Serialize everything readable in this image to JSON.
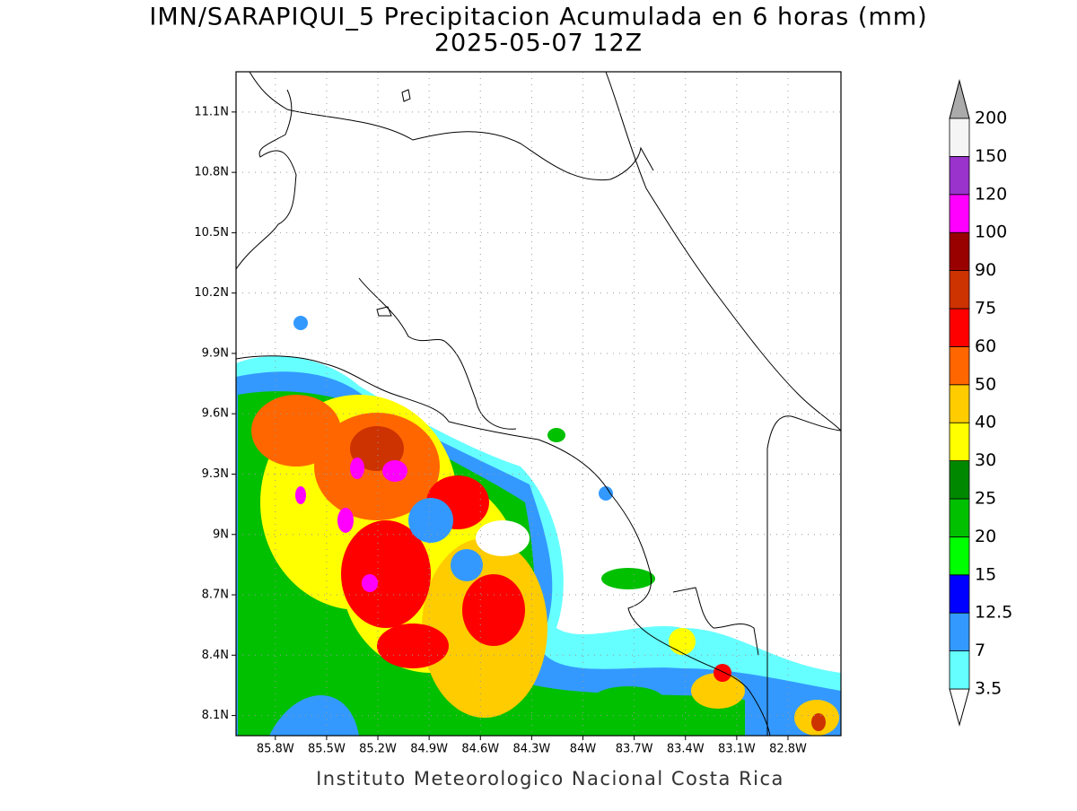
{
  "header": {
    "title": "IMN/SARAPIQUI_5 Precipitacion Acumulada en 6 horas (mm)",
    "subtitle": "2025-05-07 12Z"
  },
  "map": {
    "xlim": [
      -86.03,
      -82.49
    ],
    "ylim": [
      8.0,
      11.3
    ],
    "grid": true,
    "xticks": [
      {
        "value": -85.8,
        "label": "85.8W"
      },
      {
        "value": -85.5,
        "label": "85.5W"
      },
      {
        "value": -85.2,
        "label": "85.2W"
      },
      {
        "value": -84.9,
        "label": "84.9W"
      },
      {
        "value": -84.6,
        "label": "84.6W"
      },
      {
        "value": -84.3,
        "label": "84.3W"
      },
      {
        "value": -84.0,
        "label": "84W"
      },
      {
        "value": -83.7,
        "label": "83.7W"
      },
      {
        "value": -83.4,
        "label": "83.4W"
      },
      {
        "value": -83.1,
        "label": "83.1W"
      },
      {
        "value": -82.8,
        "label": "82.8W"
      }
    ],
    "yticks": [
      {
        "value": 8.1,
        "label": "8.1N"
      },
      {
        "value": 8.4,
        "label": "8.4N"
      },
      {
        "value": 8.7,
        "label": "8.7N"
      },
      {
        "value": 9.0,
        "label": "9N"
      },
      {
        "value": 9.3,
        "label": "9.3N"
      },
      {
        "value": 9.6,
        "label": "9.6N"
      },
      {
        "value": 9.9,
        "label": "9.9N"
      },
      {
        "value": 10.2,
        "label": "10.2N"
      },
      {
        "value": 10.5,
        "label": "10.5N"
      },
      {
        "value": 10.8,
        "label": "10.8N"
      },
      {
        "value": 11.1,
        "label": "11.1N"
      }
    ]
  },
  "colorbar": {
    "levels": [
      3.5,
      7,
      12.5,
      15,
      20,
      25,
      30,
      40,
      50,
      60,
      75,
      90,
      100,
      120,
      150,
      200
    ],
    "colors": [
      "#66ffff",
      "#3399ff",
      "#0000ff",
      "#00ff00",
      "#00c000",
      "#008800",
      "#ffff00",
      "#ffcc00",
      "#ff6600",
      "#ff0000",
      "#cc3300",
      "#990000",
      "#ff00ff",
      "#9933cc",
      "#f5f5f5"
    ],
    "under_color": "#ffffff",
    "over_color": "#aaaaaa"
  },
  "footer": "Instituto Meteorologico Nacional Costa Rica"
}
